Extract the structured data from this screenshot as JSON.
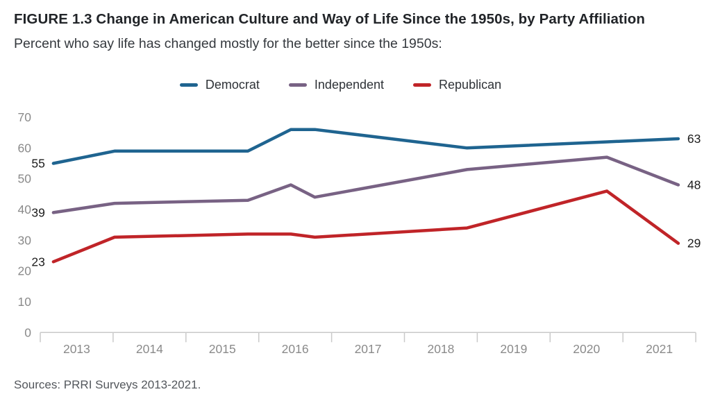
{
  "header": {
    "title": "FIGURE 1.3 Change in American Culture and Way of Life Since the 1950s, by Party Affiliation",
    "subtitle": "Percent who say life has changed mostly for the better since the 1950s:"
  },
  "source": "Sources: PRRI Surveys 2013-2021.",
  "colors": {
    "democrat": "#1f6490",
    "independent": "#786284",
    "republican": "#c02428",
    "axis": "#c9c9c9",
    "tick_label": "#8a8a8a",
    "point_label": "#1c1c1c"
  },
  "chart_data": {
    "type": "line",
    "title": "FIGURE 1.3 Change in American Culture and Way of Life Since the 1950s, by Party Affiliation",
    "subtitle": "Percent who say life has changed mostly for the better since the 1950s:",
    "legend_position": "top-center",
    "grid": false,
    "ylim": [
      0,
      70
    ],
    "y_ticks": [
      70,
      60,
      50,
      40,
      30,
      20,
      10,
      0
    ],
    "x_tick_labels": [
      "2013",
      "2014",
      "2015",
      "2016",
      "2017",
      "2018",
      "2019",
      "2020",
      "2021"
    ],
    "x_start": 2013,
    "x_values": [
      2013.18,
      2014.02,
      2015.85,
      2016.44,
      2016.77,
      2018.86,
      2020.78,
      2021.76
    ],
    "series": [
      {
        "name": "Democrat",
        "color": "#1f6490",
        "values": [
          55,
          59,
          59,
          66,
          66,
          60,
          62,
          63
        ],
        "first_label": "55",
        "last_label": "63"
      },
      {
        "name": "Independent",
        "color": "#786284",
        "values": [
          39,
          42,
          43,
          48,
          44,
          53,
          57,
          48
        ],
        "first_label": "39",
        "last_label": "48"
      },
      {
        "name": "Republican",
        "color": "#c02428",
        "values": [
          23,
          31,
          32,
          32,
          31,
          34,
          46,
          29
        ],
        "first_label": "23",
        "last_label": "29"
      }
    ]
  }
}
